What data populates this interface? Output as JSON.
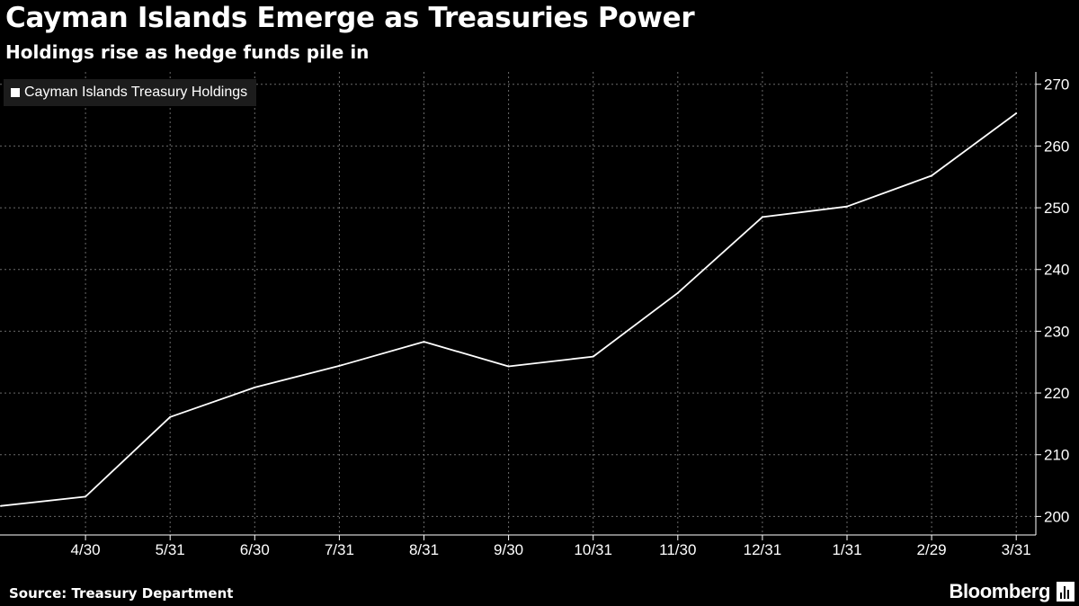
{
  "header": {
    "title": "Cayman Islands Emerge as Treasuries Power",
    "subtitle": "Holdings rise as hedge funds pile in"
  },
  "footer": {
    "source": "Source: Treasury Department",
    "brand": "Bloomberg"
  },
  "icons": {
    "brand": "bar-chart-icon"
  },
  "colors": {
    "background": "#000000",
    "line": "#ffffff",
    "grid": "#6a6a6a",
    "legend_bg": "#1c1c1c"
  },
  "chart_data": {
    "type": "line",
    "title": "Cayman Islands Emerge as Treasuries Power",
    "subtitle": "Holdings rise as hedge funds pile in",
    "xlabel": "",
    "ylabel": "",
    "x": [
      "3/31",
      "4/30",
      "5/31",
      "6/30",
      "7/31",
      "8/31",
      "9/30",
      "10/31",
      "11/30",
      "12/31",
      "1/31",
      "2/29",
      "3/31"
    ],
    "x_tick_labels": [
      "4/30",
      "5/31",
      "6/30",
      "7/31",
      "8/31",
      "9/30",
      "10/31",
      "11/30",
      "12/31",
      "1/31",
      "2/29",
      "3/31"
    ],
    "series": [
      {
        "name": "Cayman Islands Treasury Holdings",
        "values": [
          201.7,
          203.2,
          216.1,
          220.9,
          224.4,
          228.3,
          224.3,
          225.9,
          236.2,
          248.5,
          250.2,
          255.2,
          265.3
        ]
      }
    ],
    "ylim": [
      197,
      272
    ],
    "y_ticks": [
      200,
      210,
      220,
      230,
      240,
      250,
      260,
      270
    ],
    "y_axis_side": "right",
    "grid": true,
    "grid_style": "dotted",
    "legend": "top-left"
  }
}
